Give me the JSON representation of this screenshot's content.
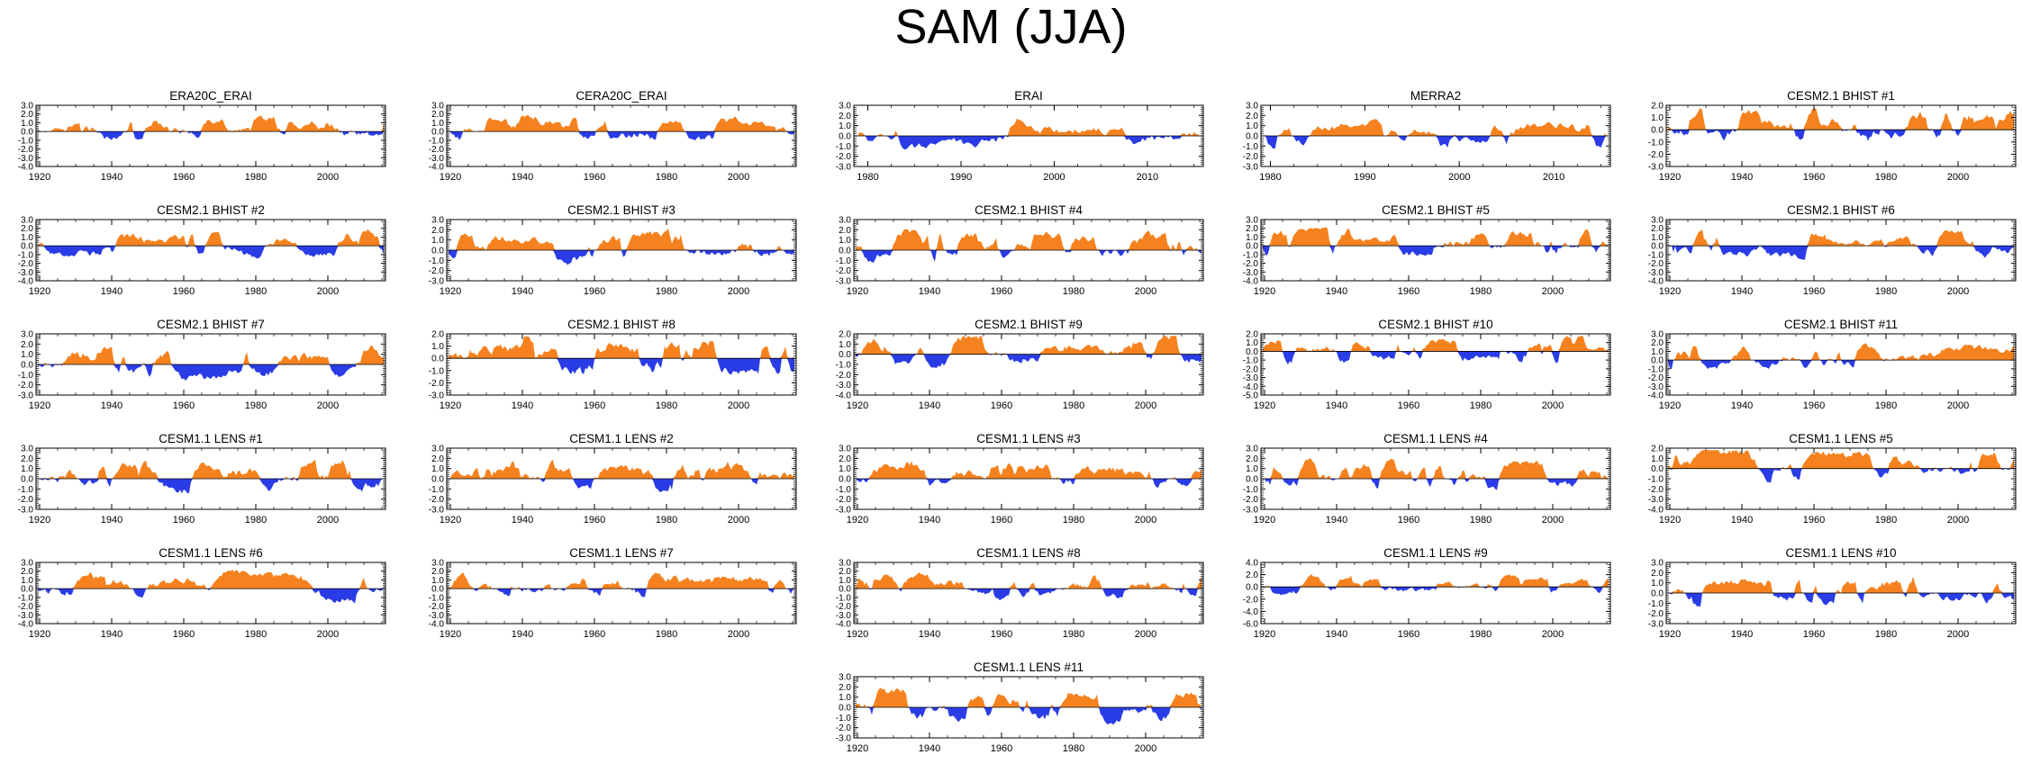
{
  "figure": {
    "title": "SAM (JJA)",
    "colors": {
      "positive": "#f5821f",
      "negative": "#2a3ce6",
      "axis": "#000000"
    }
  },
  "chart_data": [
    {
      "type": "area",
      "title": "ERA20C_ERAI",
      "xlim": [
        1919,
        2016
      ],
      "ylim": [
        -4.0,
        3.0
      ],
      "yticks": [
        "3.0",
        "2.0",
        "1.0",
        "0.0",
        "-1.0",
        "-2.0",
        "-3.0",
        "-4.0"
      ],
      "xticks": [
        "1920",
        "1940",
        "1960",
        "1980",
        "2000"
      ]
    },
    {
      "type": "area",
      "title": "CERA20C_ERAI",
      "xlim": [
        1919,
        2016
      ],
      "ylim": [
        -4.0,
        3.0
      ],
      "yticks": [
        "3.0",
        "2.0",
        "1.0",
        "0.0",
        "-1.0",
        "-2.0",
        "-3.0",
        "-4.0"
      ],
      "xticks": [
        "1920",
        "1940",
        "1960",
        "1980",
        "2000"
      ]
    },
    {
      "type": "area",
      "title": "ERAI",
      "xlim": [
        1978.5,
        2016
      ],
      "ylim": [
        -3.0,
        3.0
      ],
      "yticks": [
        "3.0",
        "2.0",
        "1.0",
        "0.0",
        "-1.0",
        "-2.0",
        "-3.0"
      ],
      "xticks": [
        "1980",
        "1990",
        "2000",
        "2010"
      ]
    },
    {
      "type": "area",
      "title": "MERRA2",
      "xlim": [
        1979,
        2016
      ],
      "ylim": [
        -3.0,
        3.0
      ],
      "yticks": [
        "3.0",
        "2.0",
        "1.0",
        "0.0",
        "-1.0",
        "-2.0",
        "-3.0"
      ],
      "xticks": [
        "1980",
        "1990",
        "2000",
        "2010"
      ]
    },
    {
      "type": "area",
      "title": "CESM2.1 BHIST #1",
      "xlim": [
        1919,
        2016
      ],
      "ylim": [
        -3.0,
        2.0
      ],
      "yticks": [
        "2.0",
        "1.0",
        "0.0",
        "-1.0",
        "-2.0",
        "-3.0"
      ],
      "xticks": [
        "1920",
        "1940",
        "1960",
        "1980",
        "2000"
      ]
    },
    {
      "type": "area",
      "title": "CESM2.1 BHIST #2",
      "xlim": [
        1919,
        2016
      ],
      "ylim": [
        -4.0,
        3.0
      ],
      "yticks": [
        "3.0",
        "2.0",
        "1.0",
        "0.0",
        "-1.0",
        "-2.0",
        "-3.0",
        "-4.0"
      ],
      "xticks": [
        "1920",
        "1940",
        "1960",
        "1980",
        "2000"
      ]
    },
    {
      "type": "area",
      "title": "CESM2.1 BHIST #3",
      "xlim": [
        1919,
        2016
      ],
      "ylim": [
        -3.0,
        3.0
      ],
      "yticks": [
        "3.0",
        "2.0",
        "1.0",
        "0.0",
        "-1.0",
        "-2.0",
        "-3.0"
      ],
      "xticks": [
        "1920",
        "1940",
        "1960",
        "1980",
        "2000"
      ]
    },
    {
      "type": "area",
      "title": "CESM2.1 BHIST #4",
      "xlim": [
        1919,
        2016
      ],
      "ylim": [
        -3.0,
        3.0
      ],
      "yticks": [
        "3.0",
        "2.0",
        "1.0",
        "0.0",
        "-1.0",
        "-2.0",
        "-3.0"
      ],
      "xticks": [
        "1920",
        "1940",
        "1960",
        "1980",
        "2000"
      ]
    },
    {
      "type": "area",
      "title": "CESM2.1 BHIST #5",
      "xlim": [
        1919,
        2016
      ],
      "ylim": [
        -4.0,
        3.0
      ],
      "yticks": [
        "3.0",
        "2.0",
        "1.0",
        "0.0",
        "-1.0",
        "-2.0",
        "-3.0",
        "-4.0"
      ],
      "xticks": [
        "1920",
        "1940",
        "1960",
        "1980",
        "2000"
      ]
    },
    {
      "type": "area",
      "title": "CESM2.1 BHIST #6",
      "xlim": [
        1919,
        2016
      ],
      "ylim": [
        -4.0,
        3.0
      ],
      "yticks": [
        "3.0",
        "2.0",
        "1.0",
        "0.0",
        "-1.0",
        "-2.0",
        "-3.0",
        "-4.0"
      ],
      "xticks": [
        "1920",
        "1940",
        "1960",
        "1980",
        "2000"
      ]
    },
    {
      "type": "area",
      "title": "CESM2.1 BHIST #7",
      "xlim": [
        1919,
        2016
      ],
      "ylim": [
        -3.0,
        3.0
      ],
      "yticks": [
        "3.0",
        "2.0",
        "1.0",
        "0.0",
        "-1.0",
        "-2.0",
        "-3.0"
      ],
      "xticks": [
        "1920",
        "1940",
        "1960",
        "1980",
        "2000"
      ]
    },
    {
      "type": "area",
      "title": "CESM2.1 BHIST #8",
      "xlim": [
        1919,
        2016
      ],
      "ylim": [
        -3.0,
        2.0
      ],
      "yticks": [
        "2.0",
        "1.0",
        "0.0",
        "-1.0",
        "-2.0",
        "-3.0"
      ],
      "xticks": [
        "1920",
        "1940",
        "1960",
        "1980",
        "2000"
      ]
    },
    {
      "type": "area",
      "title": "CESM2.1 BHIST #9",
      "xlim": [
        1919,
        2016
      ],
      "ylim": [
        -4.0,
        2.0
      ],
      "yticks": [
        "2.0",
        "1.0",
        "0.0",
        "-1.0",
        "-2.0",
        "-3.0",
        "-4.0"
      ],
      "xticks": [
        "1920",
        "1940",
        "1960",
        "1980",
        "2000"
      ]
    },
    {
      "type": "area",
      "title": "CESM2.1 BHIST #10",
      "xlim": [
        1919,
        2016
      ],
      "ylim": [
        -5.0,
        2.0
      ],
      "yticks": [
        "2.0",
        "1.0",
        "0.0",
        "-1.0",
        "-2.0",
        "-3.0",
        "-4.0",
        "-5.0"
      ],
      "xticks": [
        "1920",
        "1940",
        "1960",
        "1980",
        "2000"
      ]
    },
    {
      "type": "area",
      "title": "CESM2.1 BHIST #11",
      "xlim": [
        1919,
        2016
      ],
      "ylim": [
        -4.0,
        3.0
      ],
      "yticks": [
        "3.0",
        "2.0",
        "1.0",
        "0.0",
        "-1.0",
        "-2.0",
        "-3.0",
        "-4.0"
      ],
      "xticks": [
        "1920",
        "1940",
        "1960",
        "1980",
        "2000"
      ]
    },
    {
      "type": "area",
      "title": "CESM1.1 LENS #1",
      "xlim": [
        1919,
        2016
      ],
      "ylim": [
        -3.0,
        3.0
      ],
      "yticks": [
        "3.0",
        "2.0",
        "1.0",
        "0.0",
        "-1.0",
        "-2.0",
        "-3.0"
      ],
      "xticks": [
        "1920",
        "1940",
        "1960",
        "1980",
        "2000"
      ]
    },
    {
      "type": "area",
      "title": "CESM1.1 LENS #2",
      "xlim": [
        1919,
        2016
      ],
      "ylim": [
        -3.0,
        3.0
      ],
      "yticks": [
        "3.0",
        "2.0",
        "1.0",
        "0.0",
        "-1.0",
        "-2.0",
        "-3.0"
      ],
      "xticks": [
        "1920",
        "1940",
        "1960",
        "1980",
        "2000"
      ]
    },
    {
      "type": "area",
      "title": "CESM1.1 LENS #3",
      "xlim": [
        1919,
        2016
      ],
      "ylim": [
        -3.0,
        3.0
      ],
      "yticks": [
        "3.0",
        "2.0",
        "1.0",
        "0.0",
        "-1.0",
        "-2.0",
        "-3.0"
      ],
      "xticks": [
        "1920",
        "1940",
        "1960",
        "1980",
        "2000"
      ]
    },
    {
      "type": "area",
      "title": "CESM1.1 LENS #4",
      "xlim": [
        1919,
        2016
      ],
      "ylim": [
        -3.0,
        3.0
      ],
      "yticks": [
        "3.0",
        "2.0",
        "1.0",
        "0.0",
        "-1.0",
        "-2.0",
        "-3.0"
      ],
      "xticks": [
        "1920",
        "1940",
        "1960",
        "1980",
        "2000"
      ]
    },
    {
      "type": "area",
      "title": "CESM1.1 LENS #5",
      "xlim": [
        1919,
        2016
      ],
      "ylim": [
        -4.0,
        2.0
      ],
      "yticks": [
        "2.0",
        "1.0",
        "0.0",
        "-1.0",
        "-2.0",
        "-3.0",
        "-4.0"
      ],
      "xticks": [
        "1920",
        "1940",
        "1960",
        "1980",
        "2000"
      ]
    },
    {
      "type": "area",
      "title": "CESM1.1 LENS #6",
      "xlim": [
        1919,
        2016
      ],
      "ylim": [
        -4.0,
        3.0
      ],
      "yticks": [
        "3.0",
        "2.0",
        "1.0",
        "0.0",
        "-1.0",
        "-2.0",
        "-3.0",
        "-4.0"
      ],
      "xticks": [
        "1920",
        "1940",
        "1960",
        "1980",
        "2000"
      ]
    },
    {
      "type": "area",
      "title": "CESM1.1 LENS #7",
      "xlim": [
        1919,
        2016
      ],
      "ylim": [
        -4.0,
        3.0
      ],
      "yticks": [
        "3.0",
        "2.0",
        "1.0",
        "0.0",
        "-1.0",
        "-2.0",
        "-3.0",
        "-4.0"
      ],
      "xticks": [
        "1920",
        "1940",
        "1960",
        "1980",
        "2000"
      ]
    },
    {
      "type": "area",
      "title": "CESM1.1 LENS #8",
      "xlim": [
        1919,
        2016
      ],
      "ylim": [
        -4.0,
        3.0
      ],
      "yticks": [
        "3.0",
        "2.0",
        "1.0",
        "0.0",
        "-1.0",
        "-2.0",
        "-3.0",
        "-4.0"
      ],
      "xticks": [
        "1920",
        "1940",
        "1960",
        "1980",
        "2000"
      ]
    },
    {
      "type": "area",
      "title": "CESM1.1 LENS #9",
      "xlim": [
        1919,
        2016
      ],
      "ylim": [
        -6.0,
        4.0
      ],
      "yticks": [
        "4.0",
        "2.0",
        "0.0",
        "-2.0",
        "-4.0",
        "-6.0"
      ],
      "xticks": [
        "1920",
        "1940",
        "1960",
        "1980",
        "2000"
      ]
    },
    {
      "type": "area",
      "title": "CESM1.1 LENS #10",
      "xlim": [
        1919,
        2016
      ],
      "ylim": [
        -3.0,
        3.0
      ],
      "yticks": [
        "3.0",
        "2.0",
        "1.0",
        "0.0",
        "-1.0",
        "-2.0",
        "-3.0"
      ],
      "xticks": [
        "1920",
        "1940",
        "1960",
        "1980",
        "2000"
      ]
    },
    {
      "type": "area",
      "title": "CESM1.1 LENS #11",
      "xlim": [
        1919,
        2016
      ],
      "ylim": [
        -3.0,
        3.0
      ],
      "yticks": [
        "3.0",
        "2.0",
        "1.0",
        "0.0",
        "-1.0",
        "-2.0",
        "-3.0"
      ],
      "xticks": [
        "1920",
        "1940",
        "1960",
        "1980",
        "2000"
      ]
    }
  ]
}
